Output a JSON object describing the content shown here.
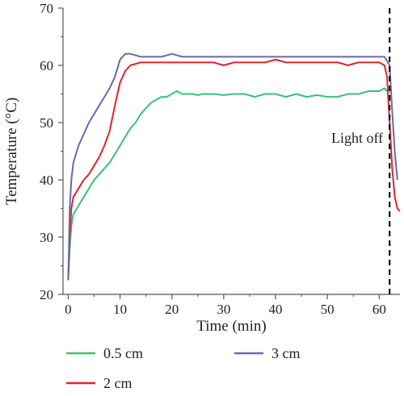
{
  "chart_data": {
    "type": "line",
    "xlabel": "Time (min)",
    "ylabel": "Temperature (°C)",
    "xlim": [
      -1,
      64
    ],
    "ylim": [
      20,
      70
    ],
    "x_ticks": [
      0,
      10,
      20,
      30,
      40,
      50,
      60
    ],
    "y_ticks": [
      20,
      30,
      40,
      50,
      60,
      70
    ],
    "grid": false,
    "legend_position": "bottom",
    "annotation": {
      "text": "Light off",
      "x": 62
    },
    "series": [
      {
        "name": "0.5 cm",
        "color": "#3dbf76",
        "x": [
          0,
          0.3,
          0.6,
          1,
          2,
          3,
          4,
          5,
          6,
          7,
          8,
          9,
          10,
          11,
          12,
          13,
          14,
          15,
          16,
          17,
          18,
          19,
          20,
          21,
          22,
          23,
          24,
          25,
          26,
          28,
          30,
          32,
          34,
          36,
          38,
          40,
          42,
          44,
          46,
          48,
          50,
          52,
          54,
          56,
          58,
          60,
          61,
          61.5
        ],
        "y": [
          22.5,
          28,
          32,
          34,
          35.5,
          37,
          38.5,
          40,
          41,
          42,
          43,
          44.5,
          46,
          47.5,
          49,
          50,
          51.5,
          52.5,
          53.5,
          54,
          54.5,
          54.5,
          55,
          55.5,
          55,
          55,
          55,
          54.8,
          55,
          55,
          54.8,
          55,
          55,
          54.5,
          55,
          55,
          54.5,
          55,
          54.5,
          54.8,
          54.5,
          54.5,
          55,
          55,
          55.5,
          55.5,
          56,
          55.5
        ]
      },
      {
        "name": "2 cm",
        "color": "#e0242b",
        "x": [
          0,
          0.3,
          0.6,
          1,
          2,
          3,
          4,
          5,
          6,
          7,
          8,
          9,
          10,
          11,
          12,
          14,
          16,
          18,
          20,
          22,
          24,
          26,
          28,
          30,
          32,
          34,
          36,
          38,
          40,
          42,
          44,
          46,
          48,
          50,
          52,
          54,
          56,
          58,
          60,
          61,
          61.5,
          62,
          62.5,
          63,
          63.5,
          64
        ],
        "y": [
          22.5,
          30,
          35,
          37,
          38.5,
          40,
          41,
          42.5,
          44,
          46,
          48.5,
          53,
          57,
          59,
          60,
          60.5,
          60.5,
          60.5,
          60.5,
          60.5,
          60.5,
          60.5,
          60.5,
          60,
          60.5,
          60.5,
          60.5,
          60.5,
          61,
          60.5,
          60.5,
          60.5,
          60.5,
          60.5,
          60.5,
          60,
          60.5,
          60.5,
          60.5,
          60,
          58,
          50,
          42,
          37,
          35,
          34.5
        ]
      },
      {
        "name": "3 cm",
        "color": "#6a6aa8",
        "x": [
          0,
          0.3,
          0.6,
          1,
          2,
          3,
          4,
          5,
          6,
          7,
          8,
          9,
          10,
          11,
          12,
          14,
          16,
          18,
          20,
          22,
          24,
          26,
          28,
          30,
          32,
          34,
          36,
          38,
          40,
          42,
          44,
          46,
          48,
          50,
          52,
          54,
          56,
          58,
          60,
          61,
          62,
          62.5,
          63,
          63.5
        ],
        "y": [
          22.5,
          35,
          40,
          43,
          46,
          48,
          50,
          51.5,
          53,
          54.5,
          56,
          58,
          61,
          62,
          62,
          61.5,
          61.5,
          61.5,
          62,
          61.5,
          61.5,
          61.5,
          61.5,
          61.5,
          61.5,
          61.5,
          61.5,
          61.5,
          61.5,
          61.5,
          61.5,
          61.5,
          61.5,
          61.5,
          61.5,
          61.5,
          61.5,
          61.5,
          61.5,
          61.5,
          60,
          52,
          45,
          40
        ]
      }
    ]
  }
}
